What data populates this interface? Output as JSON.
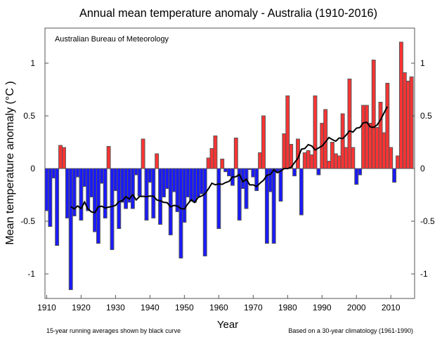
{
  "chart_data": {
    "type": "bar",
    "title": "Annual mean temperature anomaly - Australia (1910-2016)",
    "source_label": "Australian Bureau of Meteorology",
    "xlabel": "Year",
    "ylabel": "Mean temperature anomaly (°C )",
    "footnote_left": "15-year running averages shown by black curve",
    "footnote_right": "Based on a 30-year climatology (1961-1990)",
    "xlim": [
      1909.5,
      2016.9
    ],
    "ylim": [
      -1.233,
      1.333
    ],
    "xticks": [
      "1910",
      "1920",
      "1930",
      "1940",
      "1950",
      "1960",
      "1970",
      "1980",
      "1990",
      "2000",
      "2010"
    ],
    "yticks": [
      "1",
      "0.5",
      "0",
      "-0.5",
      "-1"
    ],
    "ytick_values": [
      1,
      0.5,
      0,
      -0.5,
      -1
    ],
    "grid": false,
    "colors": {
      "positive": "#ff3333",
      "negative": "#1a1aff",
      "bar_edge": "#555555",
      "running_mean": "#000000"
    },
    "running_mean_window": 15,
    "running_mean_range": [
      1917,
      2009
    ],
    "x_start": 1910,
    "values": [
      -0.4,
      -0.55,
      -0.09,
      -0.73,
      0.22,
      0.2,
      -0.47,
      -1.15,
      -0.45,
      -0.08,
      -0.49,
      -0.17,
      -0.4,
      -0.27,
      -0.6,
      -0.71,
      -0.14,
      -0.47,
      0.21,
      -0.77,
      -0.21,
      -0.57,
      -0.32,
      -0.38,
      -0.32,
      -0.38,
      -0.06,
      -0.26,
      0.28,
      -0.49,
      -0.13,
      -0.47,
      0.14,
      -0.53,
      -0.27,
      -0.19,
      -0.63,
      -0.22,
      -0.41,
      -0.85,
      -0.51,
      -0.27,
      -0.31,
      -0.32,
      -0.27,
      -0.24,
      -0.83,
      0.1,
      0.19,
      0.31,
      -0.57,
      0.09,
      -0.03,
      -0.07,
      -0.16,
      0.29,
      -0.49,
      -0.19,
      -0.38,
      -0.01,
      -0.08,
      -0.21,
      0.15,
      0.5,
      -0.71,
      -0.22,
      -0.71,
      -0.03,
      -0.31,
      0.33,
      0.69,
      0.23,
      -0.07,
      0.28,
      -0.44,
      0.15,
      0.17,
      0.13,
      0.69,
      -0.06,
      0.43,
      0.56,
      0.07,
      0.25,
      0.14,
      0.12,
      0.52,
      0.2,
      0.85,
      0.2,
      -0.15,
      -0.06,
      0.6,
      0.6,
      0.43,
      1.03,
      0.39,
      0.63,
      0.34,
      0.81,
      0.2,
      -0.13,
      0.12,
      1.2,
      0.91,
      0.83,
      0.87
    ]
  }
}
